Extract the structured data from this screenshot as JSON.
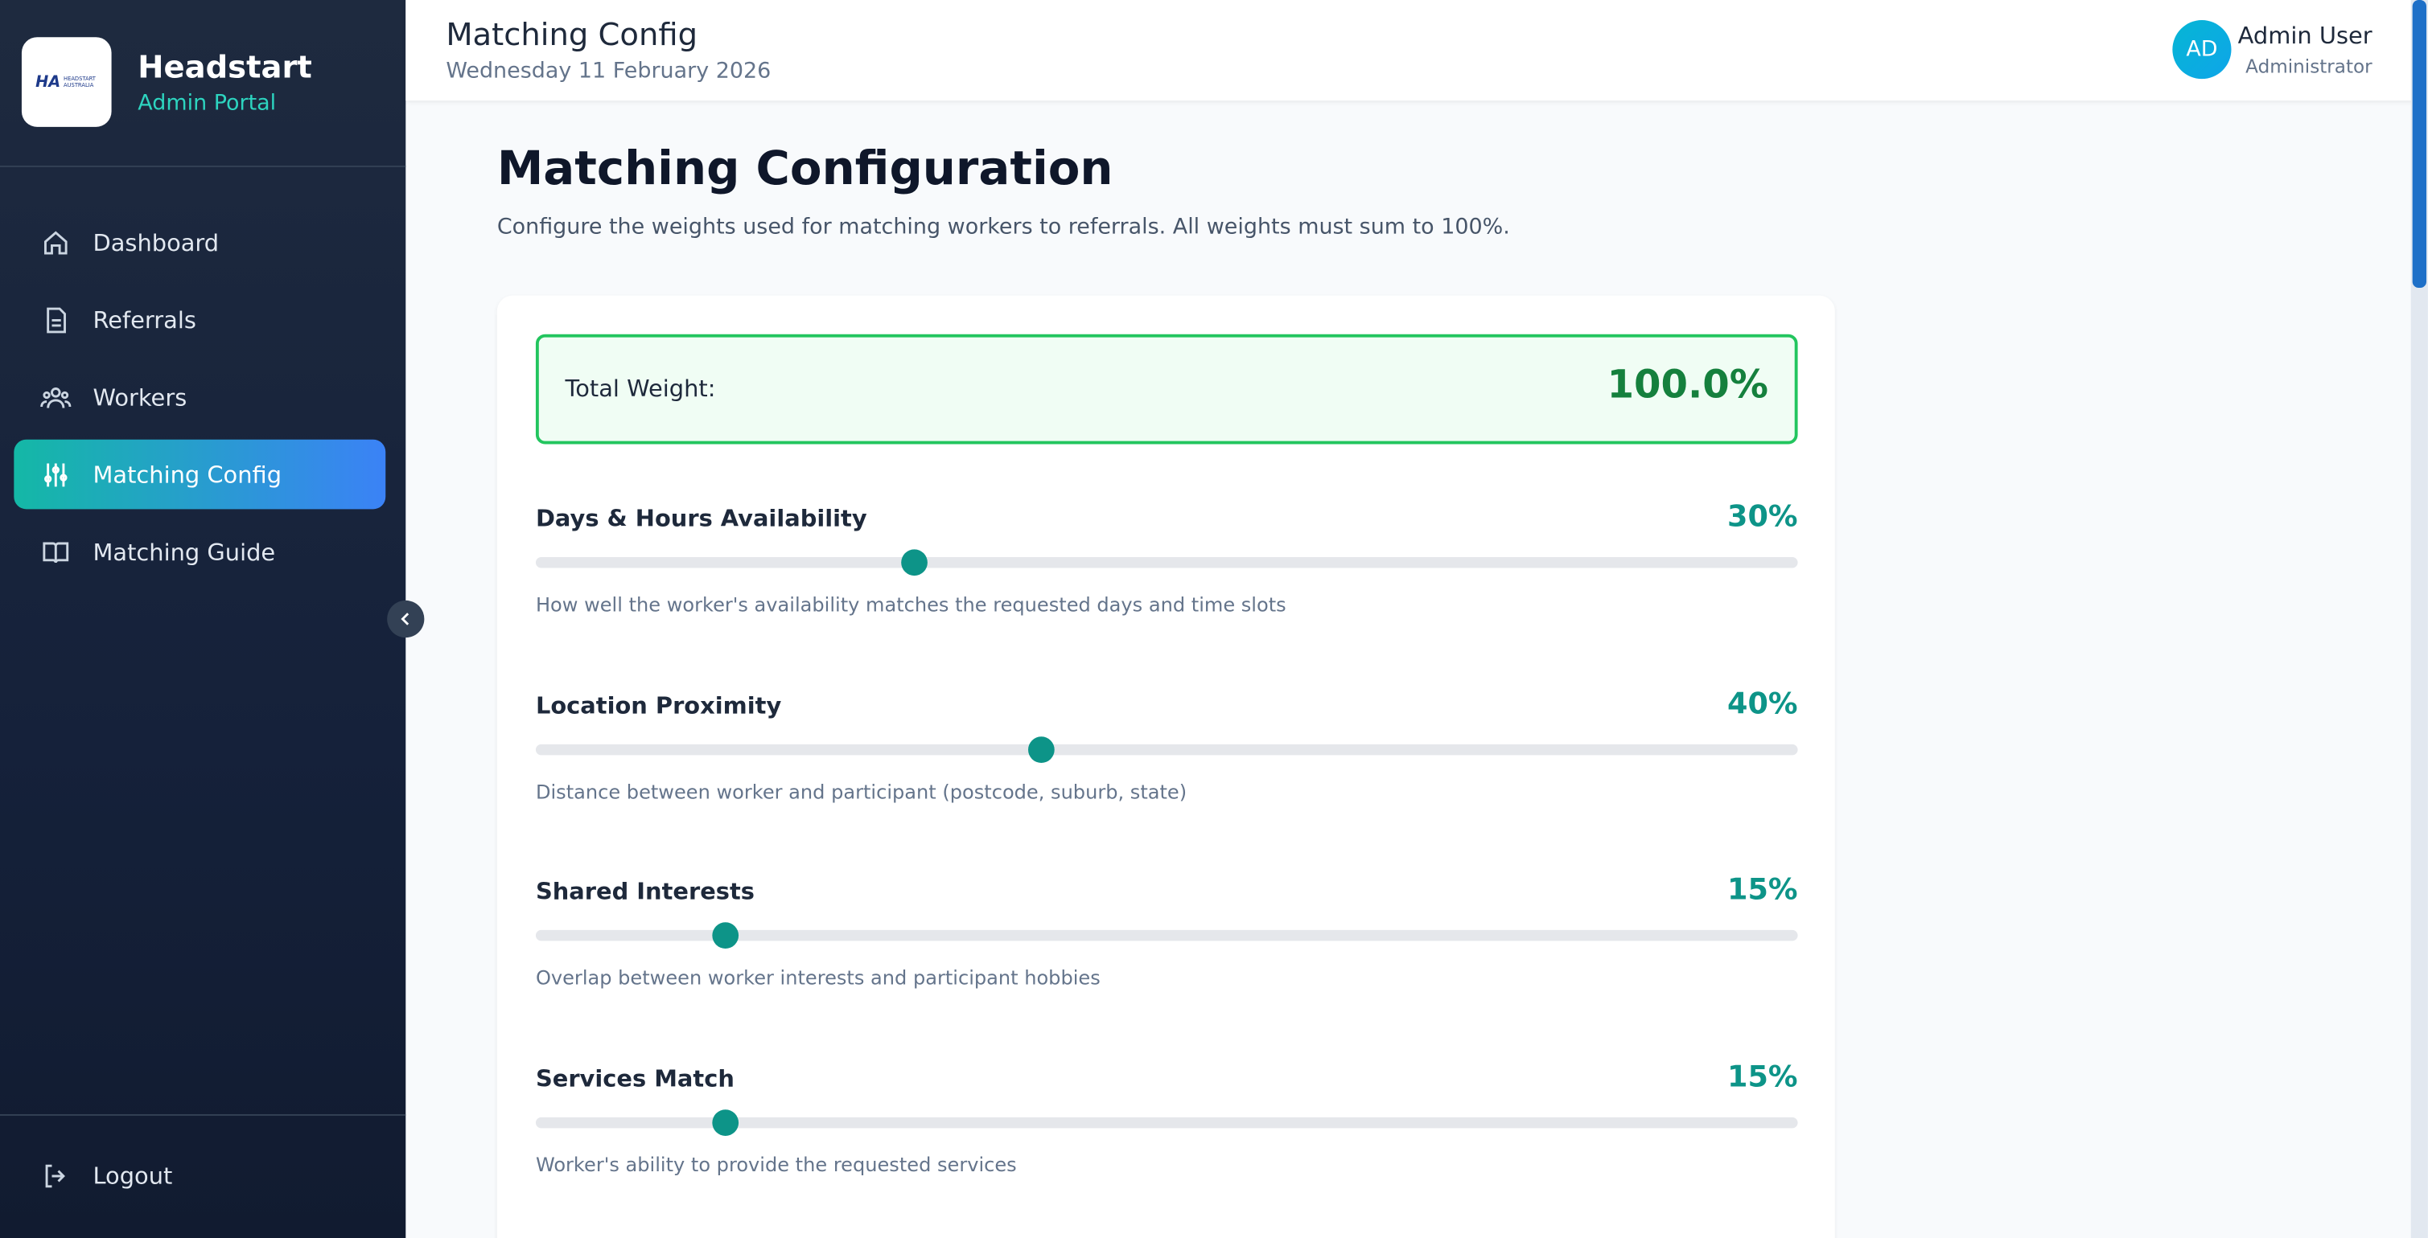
{
  "sidebar": {
    "logo_mark": "HA",
    "logo_text": "HEADSTART AUSTRALIA",
    "brand": "Headstart",
    "subtitle": "Admin Portal",
    "nav": [
      "Dashboard",
      "Referrals",
      "Workers",
      "Matching Config",
      "Matching Guide"
    ],
    "logout": "Logout"
  },
  "header": {
    "title": "Matching Config",
    "date": "Wednesday 11 February 2026",
    "initials": "AD",
    "user": "Admin User",
    "role": "Administrator"
  },
  "page": {
    "title": "Matching Configuration",
    "description": "Configure the weights used for matching workers to referrals. All weights must sum to 100%.",
    "total_label": "Total Weight:",
    "total_value": "100.0%",
    "slider_range": [
      0,
      100
    ],
    "weights": [
      {
        "label": "Days & Hours Availability",
        "value": 30,
        "value_label": "30%",
        "description": "How well the worker's availability matches the requested days and time slots"
      },
      {
        "label": "Location Proximity",
        "value": 40,
        "value_label": "40%",
        "description": "Distance between worker and participant (postcode, suburb, state)"
      },
      {
        "label": "Shared Interests",
        "value": 15,
        "value_label": "15%",
        "description": "Overlap between worker interests and participant hobbies"
      },
      {
        "label": "Services Match",
        "value": 15,
        "value_label": "15%",
        "description": "Worker's ability to provide the requested services"
      }
    ]
  }
}
